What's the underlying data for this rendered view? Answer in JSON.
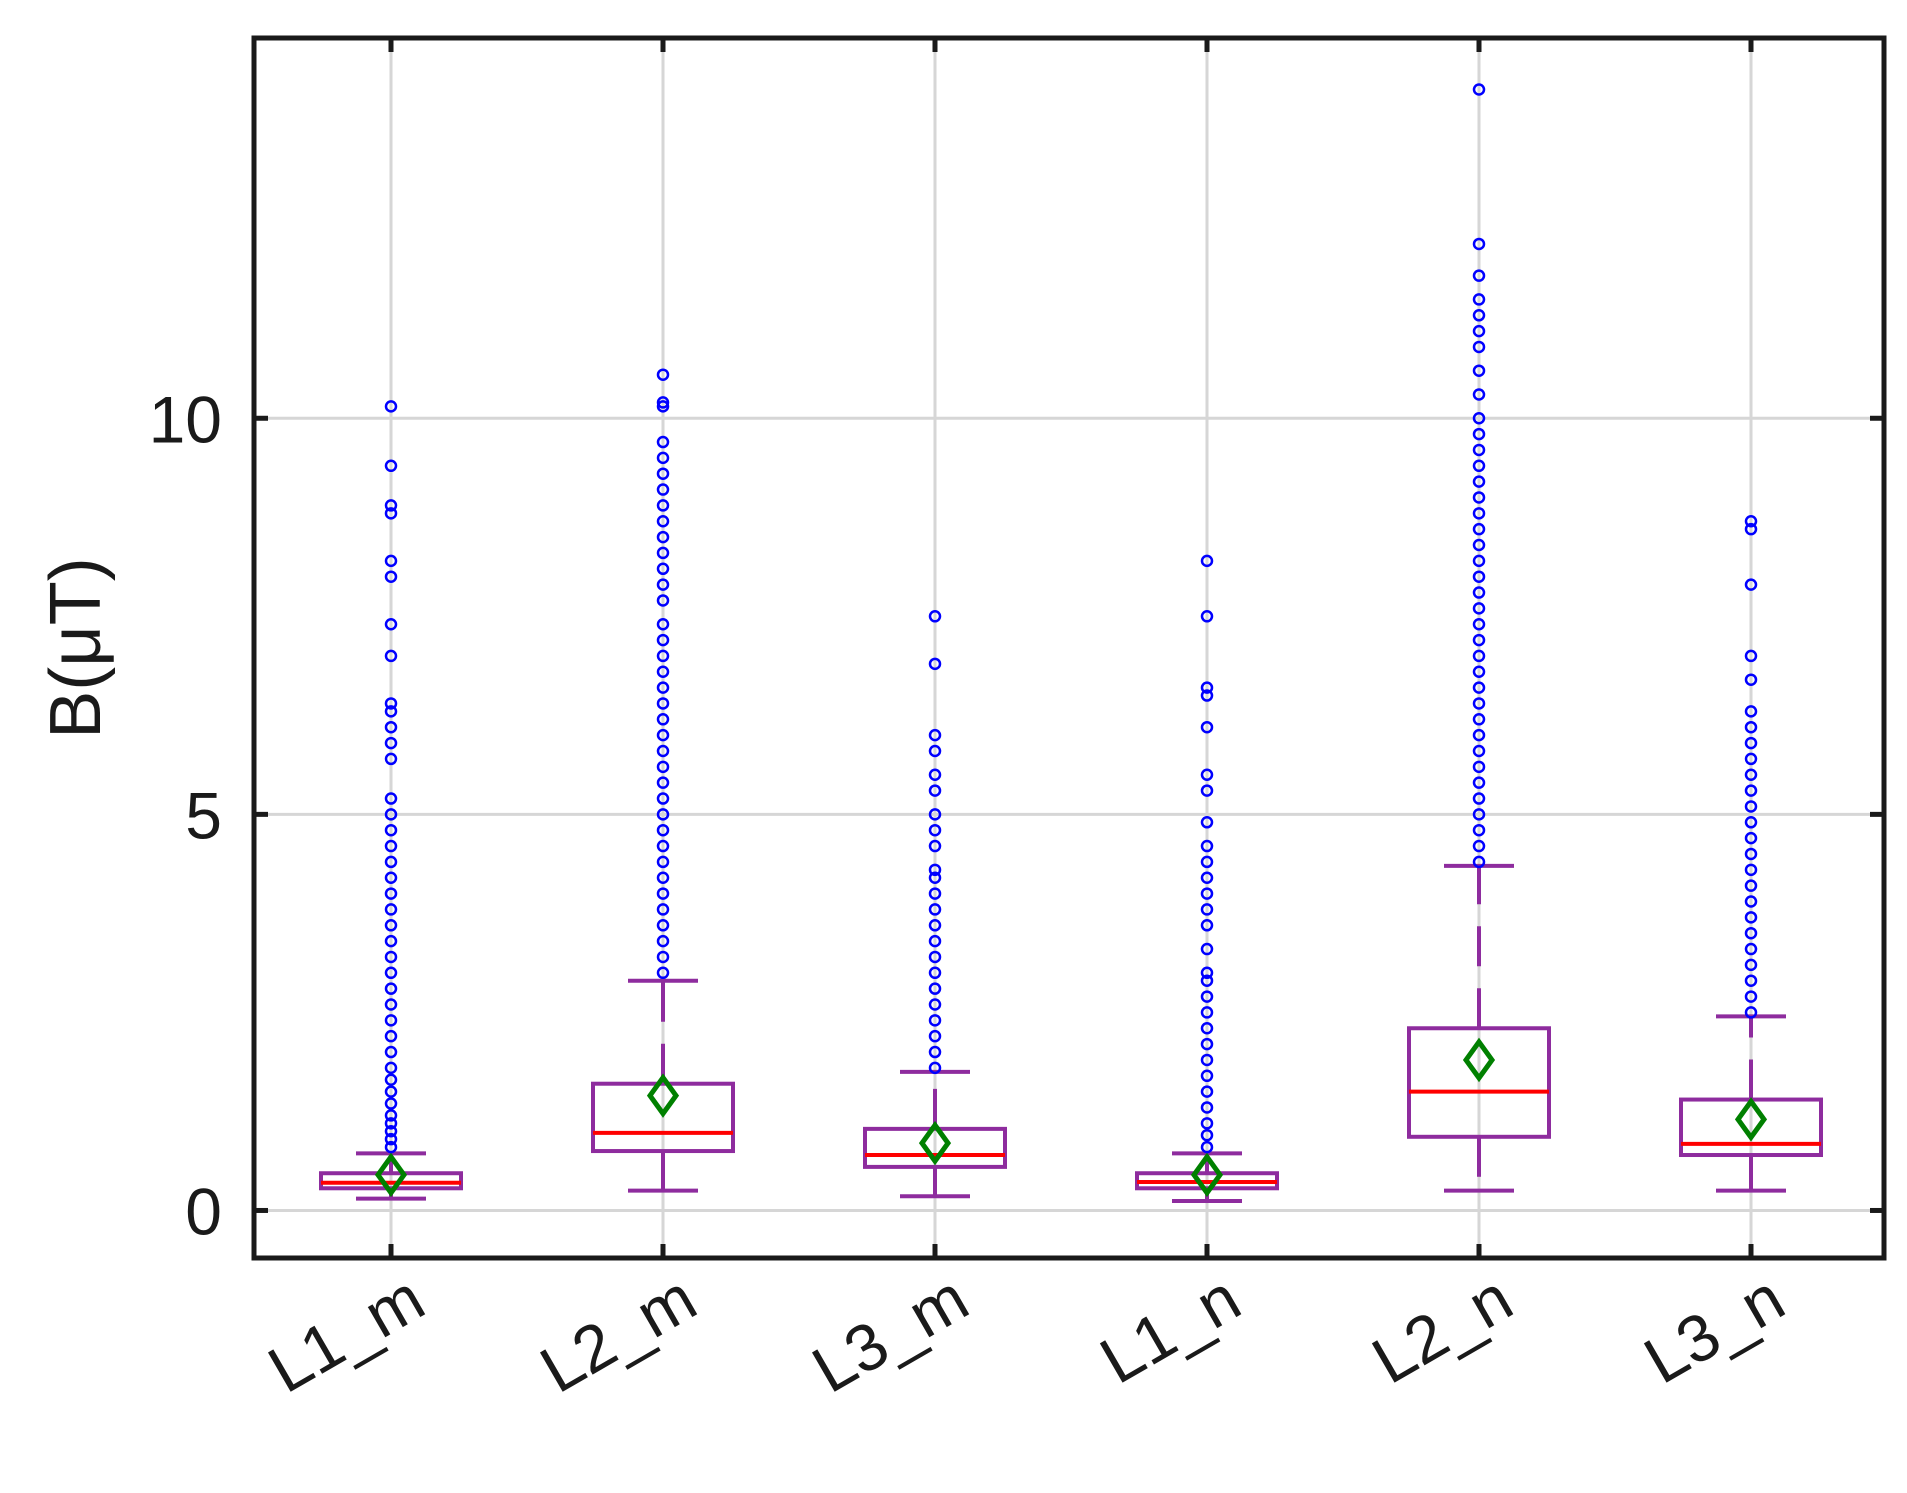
{
  "chart_data": {
    "type": "box",
    "title": "",
    "xlabel": "",
    "ylabel": "B(μT)",
    "ylim": [
      -0.6,
      14.8
    ],
    "yticks": [
      0,
      5,
      10
    ],
    "ytick_labels": [
      "0",
      "5",
      "10"
    ],
    "grid": true,
    "categories": [
      "L1_m",
      "L2_m",
      "L3_m",
      "L1_n",
      "L2_n",
      "L3_n"
    ],
    "boxes": [
      {
        "label": "L1_m",
        "whisker_low": 0.15,
        "q1": 0.28,
        "median": 0.35,
        "q3": 0.47,
        "whisker_high": 0.72,
        "mean": 0.45,
        "outliers": [
          0.8,
          0.9,
          1.0,
          1.1,
          1.2,
          1.35,
          1.5,
          1.65,
          1.8,
          2.0,
          2.2,
          2.4,
          2.6,
          2.8,
          3.0,
          3.2,
          3.4,
          3.6,
          3.8,
          4.0,
          4.2,
          4.4,
          4.6,
          4.8,
          5.0,
          5.2,
          5.7,
          5.9,
          6.1,
          6.3,
          6.4,
          7.0,
          7.4,
          8.0,
          8.2,
          8.8,
          8.9,
          9.4,
          10.15
        ]
      },
      {
        "label": "L2_m",
        "whisker_low": 0.25,
        "q1": 0.75,
        "median": 0.98,
        "q3": 1.6,
        "whisker_high": 2.9,
        "mean": 1.45,
        "outliers": [
          3.0,
          3.2,
          3.4,
          3.6,
          3.8,
          4.0,
          4.2,
          4.4,
          4.6,
          4.8,
          5.0,
          5.2,
          5.4,
          5.6,
          5.8,
          6.0,
          6.2,
          6.4,
          6.6,
          6.8,
          7.0,
          7.2,
          7.4,
          7.7,
          7.9,
          8.1,
          8.3,
          8.5,
          8.7,
          8.9,
          9.1,
          9.3,
          9.5,
          9.7,
          10.15,
          10.2,
          10.55
        ]
      },
      {
        "label": "L3_m",
        "whisker_low": 0.18,
        "q1": 0.55,
        "median": 0.7,
        "q3": 1.03,
        "whisker_high": 1.75,
        "mean": 0.85,
        "outliers": [
          1.8,
          2.0,
          2.2,
          2.4,
          2.6,
          2.8,
          3.0,
          3.2,
          3.4,
          3.6,
          3.8,
          4.0,
          4.2,
          4.3,
          4.6,
          4.8,
          5.0,
          5.3,
          5.5,
          5.8,
          6.0,
          6.9,
          7.5
        ]
      },
      {
        "label": "L1_n",
        "whisker_low": 0.12,
        "q1": 0.28,
        "median": 0.36,
        "q3": 0.47,
        "whisker_high": 0.72,
        "mean": 0.45,
        "outliers": [
          0.8,
          0.95,
          1.1,
          1.3,
          1.5,
          1.7,
          1.9,
          2.1,
          2.3,
          2.5,
          2.7,
          2.9,
          3.0,
          3.3,
          3.6,
          3.8,
          4.0,
          4.2,
          4.4,
          4.6,
          4.9,
          5.3,
          5.5,
          6.1,
          6.5,
          6.6,
          7.5,
          8.2
        ]
      },
      {
        "label": "L2_n",
        "whisker_low": 0.25,
        "q1": 0.93,
        "median": 1.5,
        "q3": 2.3,
        "whisker_high": 4.35,
        "mean": 1.9,
        "outliers": [
          4.4,
          4.6,
          4.8,
          5.0,
          5.2,
          5.4,
          5.6,
          5.8,
          6.0,
          6.2,
          6.4,
          6.6,
          6.8,
          7.0,
          7.2,
          7.4,
          7.6,
          7.8,
          8.0,
          8.2,
          8.4,
          8.6,
          8.8,
          9.0,
          9.2,
          9.4,
          9.6,
          9.8,
          10.0,
          10.3,
          10.6,
          10.9,
          11.1,
          11.3,
          11.5,
          11.8,
          12.2,
          14.15
        ]
      },
      {
        "label": "L3_n",
        "whisker_low": 0.25,
        "q1": 0.7,
        "median": 0.84,
        "q3": 1.4,
        "whisker_high": 2.45,
        "mean": 1.15,
        "outliers": [
          2.5,
          2.7,
          2.9,
          3.1,
          3.3,
          3.5,
          3.7,
          3.9,
          4.1,
          4.3,
          4.5,
          4.7,
          4.9,
          5.1,
          5.3,
          5.5,
          5.7,
          5.9,
          6.1,
          6.3,
          6.7,
          7.0,
          7.9,
          8.6,
          8.7
        ]
      }
    ],
    "colors": {
      "box": "#8e2c9e",
      "median": "#ff0000",
      "mean_marker": "#008000",
      "outlier": "#0000ff",
      "grid": "#d6d6d6",
      "axis": "#1a1a1a"
    }
  }
}
